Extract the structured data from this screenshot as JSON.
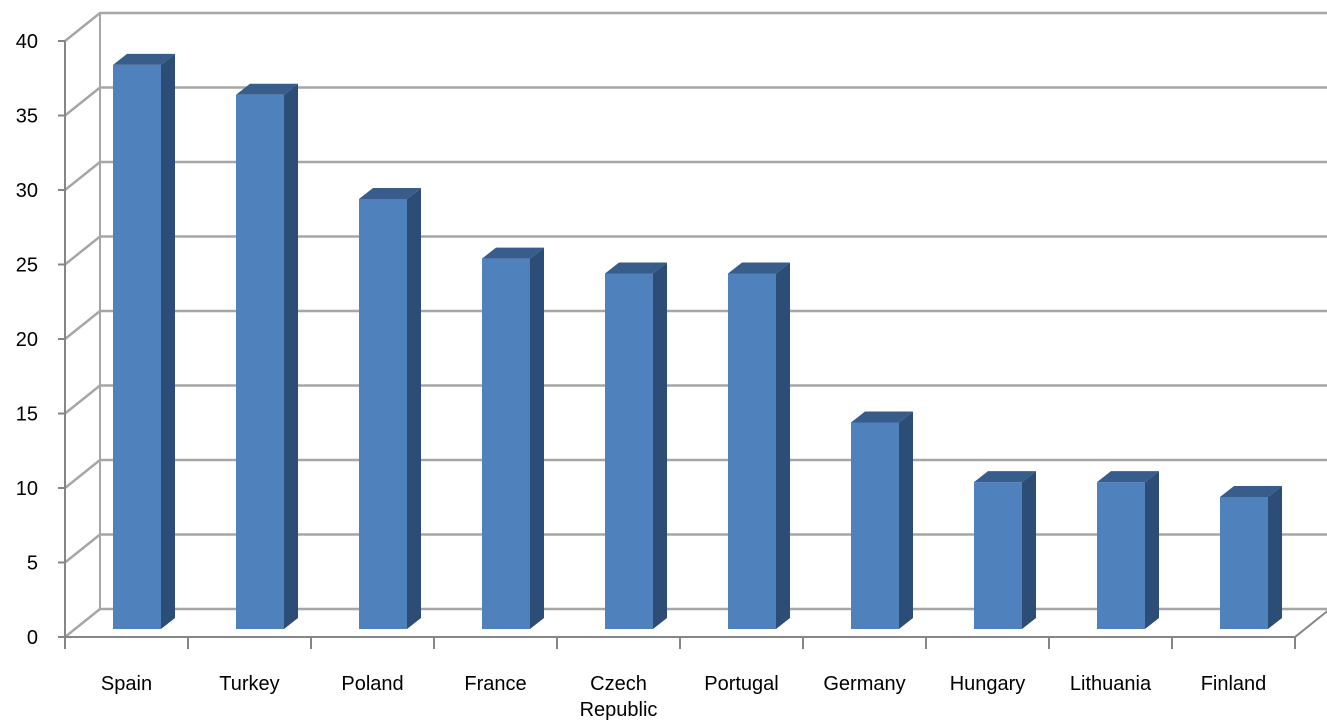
{
  "chart_data": {
    "type": "bar",
    "style": "3d-column",
    "categories": [
      "Spain",
      "Turkey",
      "Poland",
      "France",
      "Czech Republic",
      "Portugal",
      "Germany",
      "Hungary",
      "Lithuania",
      "Finland"
    ],
    "category_label_lines": [
      [
        "Spain"
      ],
      [
        "Turkey"
      ],
      [
        "Poland"
      ],
      [
        "France"
      ],
      [
        "Czech",
        "Republic"
      ],
      [
        "Portugal"
      ],
      [
        "Germany"
      ],
      [
        "Hungary"
      ],
      [
        "Lithuania"
      ],
      [
        "Finland"
      ]
    ],
    "values": [
      39,
      37,
      30,
      26,
      25,
      25,
      15,
      11,
      11,
      10
    ],
    "ylim": [
      0,
      40
    ],
    "yticks": [
      0,
      5,
      10,
      15,
      20,
      25,
      30,
      35,
      40
    ],
    "title": "",
    "xlabel": "",
    "ylabel": "",
    "grid": true,
    "legend": "none",
    "colors": {
      "bar_front": "#4f81bd",
      "bar_side": "#2c4d75",
      "bar_top": "#385d8a",
      "grid": "#a6a6a6",
      "axis": "#868686"
    }
  }
}
